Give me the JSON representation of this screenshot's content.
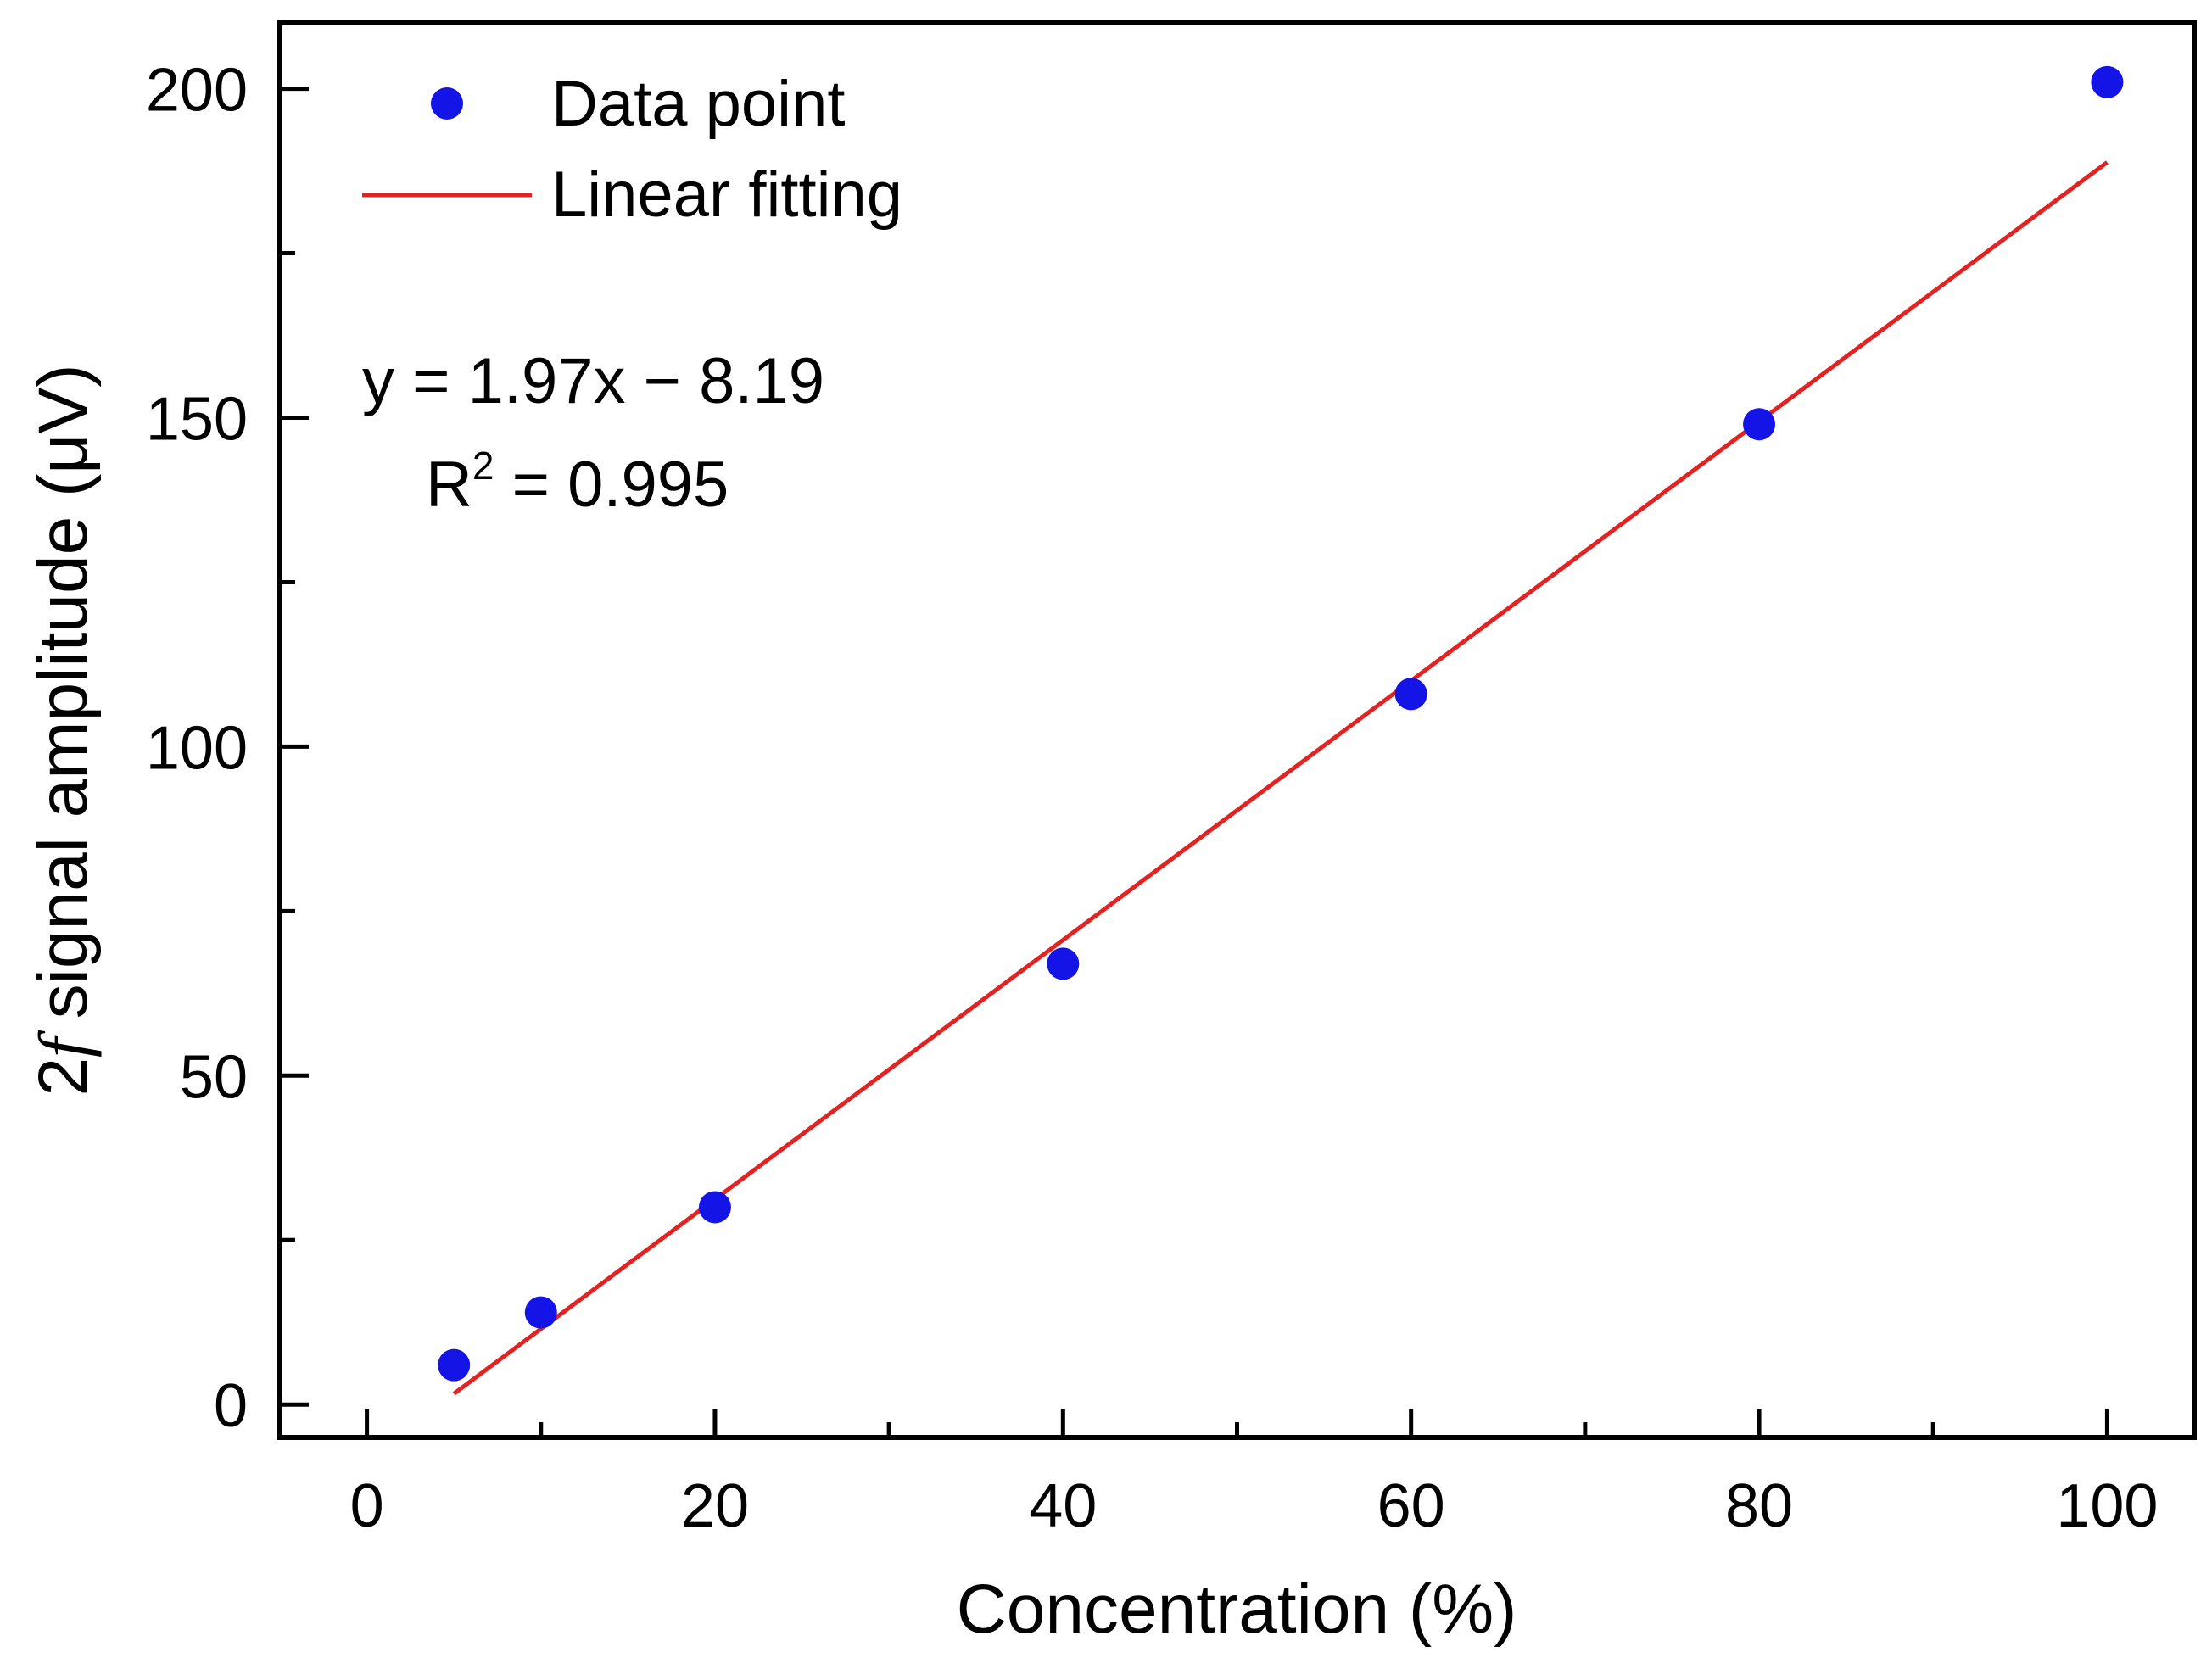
{
  "colors": {
    "points": "#1414e6",
    "fit_line": "#e32222",
    "axis": "#000000",
    "background": "#ffffff"
  },
  "chart_data": {
    "type": "scatter",
    "title": "",
    "xlabel": "Concentration (%)",
    "ylabel_prefix": "2",
    "ylabel_italic": "f",
    "ylabel_rest": " signal amplitude (μV)",
    "xlim": [
      -5,
      105
    ],
    "ylim": [
      -5,
      210
    ],
    "xticks_major": [
      0,
      20,
      40,
      60,
      80,
      100
    ],
    "xticks_minor": [
      10,
      30,
      50,
      70,
      90
    ],
    "yticks_major": [
      0,
      50,
      100,
      150,
      200
    ],
    "yticks_minor": [
      25,
      75,
      125,
      175
    ],
    "grid": false,
    "series": [
      {
        "name": "Data point",
        "kind": "scatter",
        "x": [
          5,
          10,
          20,
          40,
          60,
          80,
          100
        ],
        "y": [
          6,
          14,
          30,
          67,
          108,
          149,
          201
        ]
      },
      {
        "name": "Linear fitting",
        "kind": "line",
        "slope": 1.97,
        "intercept": -8.19,
        "x_range": [
          5,
          100
        ]
      }
    ],
    "legend": {
      "position": "top-left",
      "entries": [
        "Data point",
        "Linear fitting"
      ]
    },
    "annotations": {
      "equation": "y = 1.97x − 8.19",
      "r2_prefix": "R",
      "r2_sup": "2",
      "r2_rest": " = 0.995"
    }
  }
}
